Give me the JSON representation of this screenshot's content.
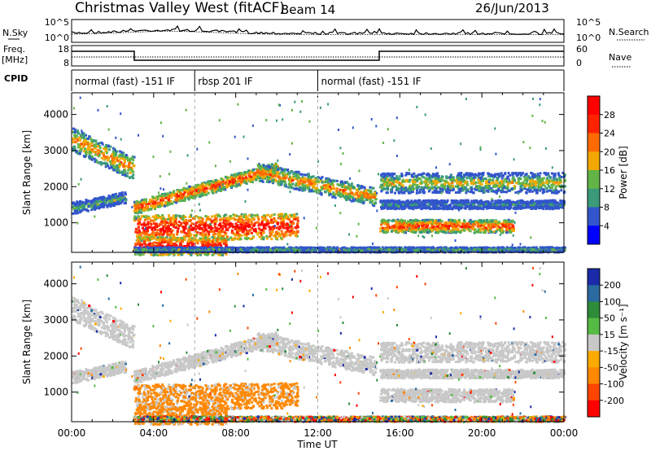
{
  "header": {
    "title": "Christmas Valley West (fitACF)",
    "beam": "Beam 14",
    "date": "26/Jun/2013"
  },
  "noise_panel": {
    "left_label": "N.Sky",
    "right_label": "N.Search",
    "left_ticks": [
      "10^5",
      "10^0"
    ],
    "right_ticks": [
      "10^5",
      "10^0"
    ]
  },
  "freq_panel": {
    "left_label_1": "Freq.",
    "left_label_2": "[MHz]",
    "left_ticks": [
      "18",
      "8"
    ],
    "right_label": "Nave",
    "right_ticks": [
      "60",
      "0"
    ]
  },
  "cpid": {
    "label": "CPID",
    "segments": [
      {
        "x0": 0,
        "x1": 6,
        "name": "normal (fast) -151 IF"
      },
      {
        "x0": 6,
        "x1": 12,
        "name": "rbsp 201 IF"
      },
      {
        "x0": 12,
        "x1": 24,
        "name": "normal (fast) -151 IF"
      }
    ]
  },
  "chart_data": [
    {
      "type": "heatmap",
      "title": "Power",
      "ylabel": "Slant Range [km]",
      "ylim": [
        180,
        4600
      ],
      "yticks": [
        "1000",
        "2000",
        "3000",
        "4000"
      ],
      "xlim": [
        0,
        24
      ],
      "colorbar": {
        "label": "Power [dB]",
        "range": [
          0,
          32
        ],
        "ticks": [
          "4",
          "8",
          "12",
          "16",
          "20",
          "24",
          "28"
        ],
        "colors": [
          "#0000ff",
          "#3355cc",
          "#3a9a7a",
          "#62b446",
          "#f2a800",
          "#ff6a00",
          "#ff2200",
          "#ff0000"
        ]
      }
    },
    {
      "type": "heatmap",
      "title": "Velocity",
      "ylabel": "Slant Range [km]",
      "xlabel": "Time UT",
      "ylim": [
        180,
        4600
      ],
      "yticks": [
        "1000",
        "2000",
        "3000",
        "4000"
      ],
      "xlim": [
        0,
        24
      ],
      "xticks": [
        "00:00",
        "04:00",
        "08:00",
        "12:00",
        "16:00",
        "20:00",
        "00:00"
      ],
      "colorbar": {
        "label": "Velocity [m s⁻¹]",
        "range": [
          -250,
          250
        ],
        "ticks": [
          "200",
          "100",
          "50",
          "15",
          "-15",
          "-50",
          "-100",
          "-200"
        ],
        "colors": [
          "#ff0000",
          "#ff4400",
          "#ff8800",
          "#ffaa00",
          "#c8c8c8",
          "#55bb44",
          "#2e8b3a",
          "#2a6aa0",
          "#1a2aa8"
        ]
      }
    }
  ]
}
